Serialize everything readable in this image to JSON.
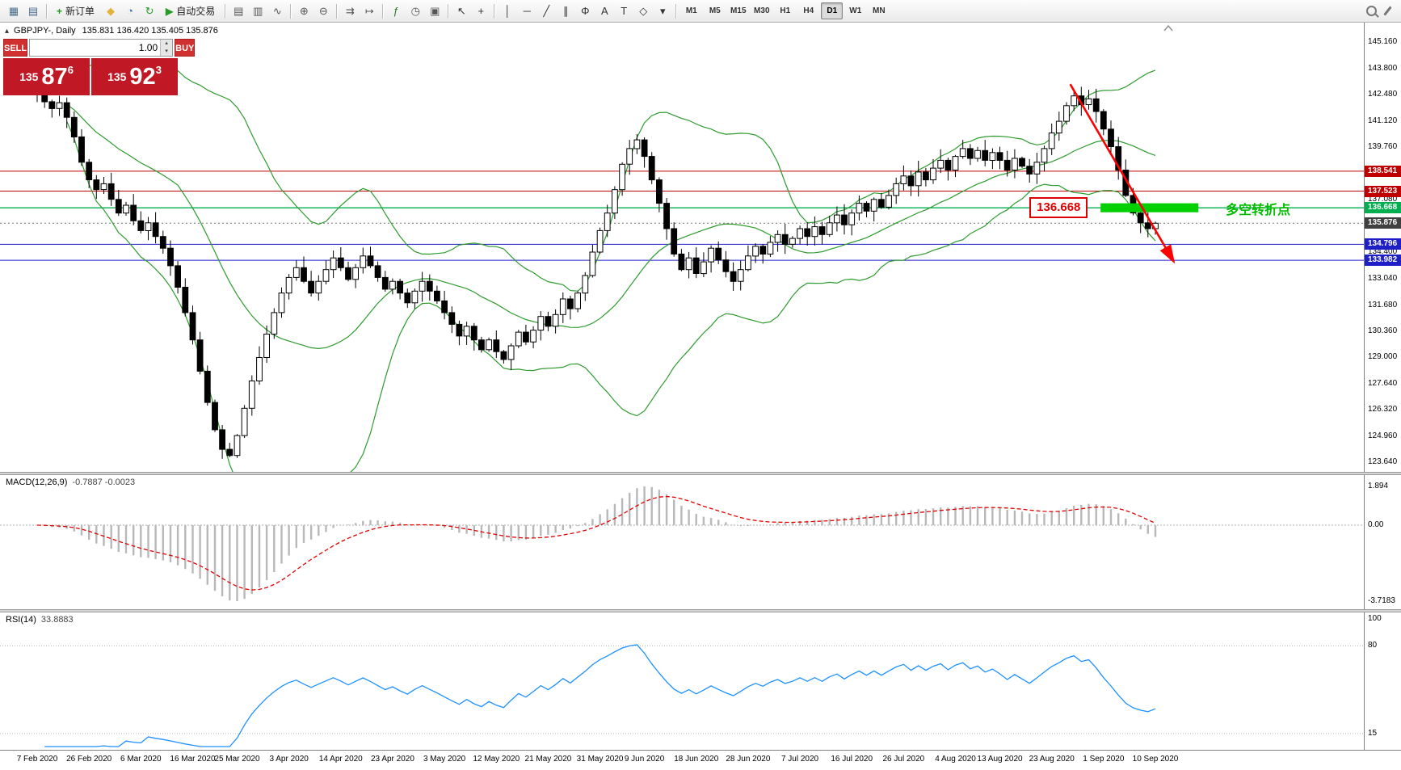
{
  "toolbar": {
    "groups": [
      [
        {
          "name": "new-chart",
          "glyph": "▦",
          "color": "#4a6c8c"
        },
        {
          "name": "profiles",
          "glyph": "▤",
          "color": "#4a6c8c"
        }
      ],
      [
        {
          "name": "new-order",
          "glyph": "+",
          "color": "#1a9a1a",
          "label": "新订单"
        },
        {
          "name": "metaeditor",
          "glyph": "◆",
          "color": "#e0b43a"
        },
        {
          "name": "data-window",
          "glyph": "◔",
          "color": "#3a6ec8"
        },
        {
          "name": "refresh",
          "glyph": "↻",
          "color": "#2a9a2a"
        },
        {
          "name": "autotrading",
          "glyph": "▶",
          "color": "#2a9a2a",
          "label": "自动交易"
        }
      ],
      [
        {
          "name": "bar-chart-mode",
          "glyph": "▤",
          "color": "#555555"
        },
        {
          "name": "candlestick-mode",
          "glyph": "▥",
          "color": "#555555"
        },
        {
          "name": "line-chart-mode",
          "glyph": "∿",
          "color": "#555555"
        }
      ],
      [
        {
          "name": "zoom-in",
          "glyph": "⊕",
          "color": "#555555"
        },
        {
          "name": "zoom-out",
          "glyph": "⊖",
          "color": "#555555"
        }
      ],
      [
        {
          "name": "auto-scroll",
          "glyph": "⇉",
          "color": "#555555"
        },
        {
          "name": "chart-shift",
          "glyph": "↦",
          "color": "#555555"
        }
      ],
      [
        {
          "name": "indicators",
          "glyph": "ƒ",
          "color": "#2a7a2a"
        },
        {
          "name": "periods",
          "glyph": "◷",
          "color": "#555555"
        },
        {
          "name": "templates",
          "glyph": "▣",
          "color": "#555555"
        }
      ],
      [
        {
          "name": "cursor-tool",
          "glyph": "↖",
          "color": "#333333"
        },
        {
          "name": "crosshair-tool",
          "glyph": "+",
          "color": "#333333"
        }
      ],
      [
        {
          "name": "vertical-line-tool",
          "glyph": "│",
          "color": "#333333"
        },
        {
          "name": "horizontal-line-tool",
          "glyph": "─",
          "color": "#333333"
        },
        {
          "name": "trendline-tool",
          "glyph": "╱",
          "color": "#333333"
        },
        {
          "name": "channel-tool",
          "glyph": "∥",
          "color": "#333333"
        },
        {
          "name": "fibonacci-tool",
          "glyph": "Φ",
          "color": "#333333"
        },
        {
          "name": "text-tool",
          "glyph": "A",
          "color": "#333333"
        },
        {
          "name": "label-tool",
          "glyph": "T",
          "color": "#333333"
        },
        {
          "name": "shapes-tool",
          "glyph": "◇",
          "color": "#333333"
        },
        {
          "name": "more-tools",
          "glyph": "▾",
          "color": "#333333"
        }
      ]
    ],
    "timeframes": [
      {
        "label": "M1"
      },
      {
        "label": "M5"
      },
      {
        "label": "M15"
      },
      {
        "label": "M30"
      },
      {
        "label": "H1"
      },
      {
        "label": "H4"
      },
      {
        "label": "D1",
        "active": true
      },
      {
        "label": "W1"
      },
      {
        "label": "MN"
      }
    ],
    "right_icons": [
      {
        "name": "search",
        "shape": "magnifier"
      },
      {
        "name": "edit",
        "shape": "pencil"
      }
    ]
  },
  "chart_header": {
    "collapse_icon": "▴",
    "symbol_period": "GBPJPY-, Daily",
    "ohlc": "135.831 136.420 135.405 135.876"
  },
  "one_click": {
    "sell_label": "SELL",
    "buy_label": "BUY",
    "volume": "1.00",
    "sell_price": {
      "small": "135",
      "big": "87",
      "sup": "6"
    },
    "buy_price": {
      "small": "135",
      "big": "92",
      "sup": "3"
    }
  },
  "panes": {
    "macd_label": "MACD(12,26,9)",
    "macd_values": "-0.7887 -0.0023",
    "rsi_label": "RSI(14)",
    "rsi_value": "33.8883"
  },
  "chart_data": {
    "type": "candlestick",
    "symbol": "GBPJPY",
    "period": "Daily",
    "ohlc_current": {
      "open": 135.831,
      "high": 136.42,
      "low": 135.405,
      "close": 135.876
    },
    "price_axis": {
      "max": 145.16,
      "min": 123.64,
      "ticks": [
        "145.160",
        "143.800",
        "142.480",
        "141.120",
        "139.760",
        "138.400",
        "137.080",
        "135.720",
        "134.400",
        "133.040",
        "131.680",
        "130.360",
        "129.000",
        "127.640",
        "126.320",
        "124.960",
        "123.640"
      ]
    },
    "price_tags": [
      {
        "text": "138.541",
        "bg": "#c00000"
      },
      {
        "text": "137.523",
        "bg": "#c00000"
      },
      {
        "text": "136.668",
        "bg": "#00b050"
      },
      {
        "text": "135.876",
        "bg": "#404040"
      },
      {
        "text": "134.796",
        "bg": "#1f1fc8"
      },
      {
        "text": "133.982",
        "bg": "#1f1fc8"
      }
    ],
    "hlines": [
      {
        "price": 138.541,
        "color": "#c00000"
      },
      {
        "price": 137.523,
        "color": "#c00000"
      },
      {
        "price": 136.668,
        "color": "#00b050"
      },
      {
        "price": 134.796,
        "color": "#1f1fc8"
      },
      {
        "price": 133.982,
        "color": "#1f1fc8"
      }
    ],
    "current_price": 135.876,
    "dates": [
      "7 Feb 2020",
      "26 Feb 2020",
      "6 Mar 2020",
      "16 Mar 2020",
      "25 Mar 2020",
      "3 Apr 2020",
      "14 Apr 2020",
      "23 Apr 2020",
      "3 May 2020",
      "12 May 2020",
      "21 May 2020",
      "31 May 2020",
      "9 Jun 2020",
      "18 Jun 2020",
      "28 Jun 2020",
      "7 Jul 2020",
      "16 Jul 2020",
      "26 Jul 2020",
      "4 Aug 2020",
      "13 Aug 2020",
      "23 Aug 2020",
      "1 Sep 2020",
      "10 Sep 2020"
    ],
    "closes": [
      142.62,
      142.1,
      141.75,
      142.05,
      141.3,
      140.3,
      139.0,
      138.1,
      137.6,
      137.9,
      137.1,
      136.4,
      136.8,
      136.0,
      135.5,
      135.9,
      135.2,
      134.6,
      133.7,
      132.6,
      131.3,
      129.9,
      128.3,
      126.7,
      125.3,
      124.3,
      123.98,
      125.0,
      126.4,
      127.8,
      129.0,
      130.2,
      131.3,
      132.3,
      133.1,
      133.6,
      132.9,
      132.3,
      132.9,
      133.5,
      134.1,
      133.6,
      133.0,
      133.6,
      134.2,
      133.7,
      133.1,
      132.5,
      132.9,
      132.3,
      131.8,
      132.4,
      132.9,
      132.4,
      131.9,
      131.3,
      130.7,
      130.1,
      130.6,
      129.9,
      129.4,
      129.9,
      129.3,
      128.9,
      129.6,
      130.3,
      129.8,
      130.4,
      131.1,
      130.6,
      131.2,
      132.0,
      131.5,
      132.3,
      133.2,
      134.4,
      135.5,
      136.4,
      137.6,
      138.9,
      139.7,
      140.15,
      139.3,
      138.1,
      136.9,
      135.6,
      134.3,
      133.5,
      134.1,
      133.3,
      133.9,
      134.6,
      134.0,
      133.4,
      132.9,
      133.5,
      134.2,
      134.7,
      134.3,
      134.9,
      135.3,
      134.8,
      135.1,
      135.6,
      135.2,
      135.7,
      135.3,
      135.9,
      136.3,
      135.8,
      136.4,
      136.9,
      136.5,
      137.1,
      136.7,
      137.3,
      137.9,
      138.3,
      137.8,
      138.5,
      138.1,
      138.7,
      139.1,
      138.6,
      139.3,
      139.7,
      139.2,
      139.6,
      139.1,
      139.5,
      139.1,
      138.6,
      139.2,
      138.8,
      138.4,
      139.0,
      139.7,
      140.5,
      141.1,
      141.9,
      142.4,
      141.95,
      142.25,
      141.6,
      140.7,
      139.8,
      138.6,
      137.3,
      136.4,
      135.9,
      135.6,
      135.876
    ],
    "indicators": {
      "bollinger": {
        "period": 20,
        "deviation": 2,
        "color": "#2e9b2e"
      },
      "macd": {
        "fast": 12,
        "slow": 26,
        "signal": 9,
        "histogram_color": "#b8b8b8",
        "signal_color": "#e00000",
        "current_values": "-0.7887 -0.0023",
        "scale_ticks": [
          "1.894",
          "0.00",
          "-3.7183"
        ]
      },
      "rsi": {
        "period": 14,
        "color": "#1e90ff",
        "current_value": "33.8883",
        "levels": [
          80,
          15
        ],
        "scale_ticks": [
          "100",
          "80",
          "15"
        ]
      }
    },
    "annotations": {
      "zone_rect": {
        "bar_from": 143.6,
        "bar_to": 156.8,
        "price_from": 136.44,
        "price_to": 136.9,
        "color": "#00cf00"
      },
      "price_label": {
        "text": "136.668",
        "price": 136.668,
        "color": "#e00000"
      },
      "note": {
        "text": "多空转折点",
        "color": "#00bb00"
      },
      "arrow": {
        "from_bar": 139.5,
        "from_price": 143.0,
        "to_bar": 153.5,
        "to_price": 133.9,
        "color": "#ff0000"
      }
    }
  }
}
